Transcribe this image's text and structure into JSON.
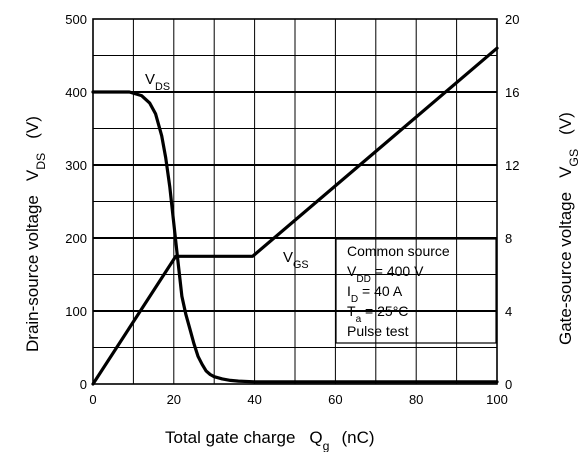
{
  "chart_data": {
    "type": "line",
    "title": "",
    "xlabel": {
      "main": "Total gate charge",
      "symbol": "Q",
      "sub": "g",
      "unit": "(nC)"
    },
    "ylabel_left": {
      "main": "Drain-source voltage",
      "symbol": "V",
      "sub": "DS",
      "unit": "(V)"
    },
    "ylabel_right": {
      "main": "Gate-source voltage",
      "symbol": "V",
      "sub": "GS",
      "unit": "(V)"
    },
    "xlim": [
      0,
      100
    ],
    "ylim_left": [
      0,
      500
    ],
    "ylim_right": [
      0,
      20
    ],
    "x_ticks": [
      "0",
      "20",
      "40",
      "60",
      "80",
      "100"
    ],
    "y_left_ticks": [
      "0",
      "100",
      "200",
      "300",
      "400",
      "500"
    ],
    "y_right_ticks": [
      "0",
      "4",
      "8",
      "12",
      "16",
      "20"
    ],
    "grid": true,
    "series": [
      {
        "name": "VDS",
        "label": {
          "symbol": "V",
          "sub": "DS"
        },
        "axis": "left",
        "x": [
          0,
          5,
          9,
          12,
          14,
          15.5,
          17,
          18,
          19,
          20,
          21,
          22,
          23,
          24,
          25,
          26,
          27,
          28,
          29,
          30,
          32,
          34,
          36,
          40,
          50,
          100
        ],
        "y": [
          400,
          400,
          400,
          395,
          385,
          370,
          340,
          310,
          270,
          220,
          170,
          120,
          95,
          75,
          55,
          38,
          27,
          18,
          13,
          10,
          7,
          5,
          4,
          3,
          3,
          3
        ]
      },
      {
        "name": "VGS",
        "label": {
          "symbol": "V",
          "sub": "GS"
        },
        "axis": "right",
        "x": [
          0,
          20.5,
          39.5,
          100
        ],
        "y": [
          0,
          7.0,
          7.0,
          18.4
        ]
      }
    ],
    "annotation": [
      {
        "text": "Common source"
      },
      {
        "pre": "V",
        "sub": "DD",
        "post": " = 400 V"
      },
      {
        "pre": "I",
        "sub": "D",
        "post": " = 40 A"
      },
      {
        "pre": "T",
        "sub": "a",
        "post": " = 25°C"
      },
      {
        "text": "Pulse test"
      }
    ]
  }
}
